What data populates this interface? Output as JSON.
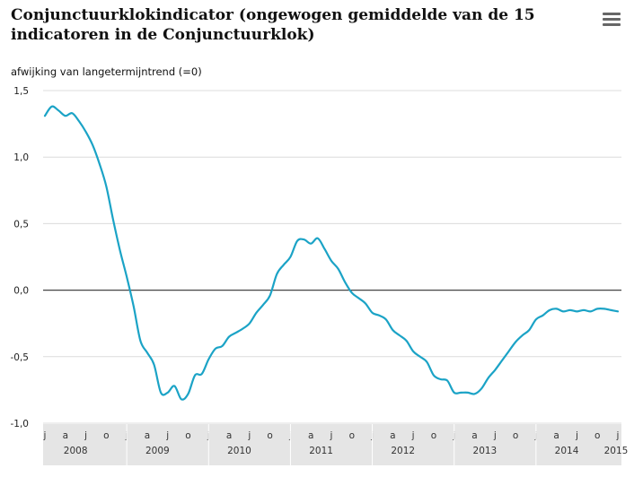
{
  "chart_data": {
    "type": "line",
    "title": "Conjunctuurklokindicator (ongewogen gemiddelde van de 15 indicatoren in de Conjunctuurklok)",
    "xlabel": "",
    "ylabel": "afwijking van langetermijntrend (=0)",
    "ylim": [
      -1.0,
      1.5
    ],
    "yticks": [
      "-1,0",
      "-0,5",
      "0,0",
      "0,5",
      "1,0",
      "1,5"
    ],
    "grid": true,
    "legend": "none",
    "line_color": "#1ba3c6",
    "month_ticks": [
      "j",
      "a",
      "j",
      "o",
      "j",
      "a",
      "j",
      "o",
      "j",
      "a",
      "j",
      "o",
      "j",
      "a",
      "j",
      "o",
      "j",
      "a",
      "j",
      "o",
      "j",
      "a",
      "j",
      "o",
      "j",
      "a",
      "j",
      "o",
      "j"
    ],
    "year_labels": [
      "2008",
      "2009",
      "2010",
      "2011",
      "2012",
      "2013",
      "2014",
      "2015"
    ],
    "series": [
      {
        "x": [
          "2008-01",
          "2008-02",
          "2008-03",
          "2008-04",
          "2008-05",
          "2008-06",
          "2008-07",
          "2008-08",
          "2008-09",
          "2008-10",
          "2008-11",
          "2008-12",
          "2009-01",
          "2009-02",
          "2009-03",
          "2009-04",
          "2009-05",
          "2009-06",
          "2009-07",
          "2009-08",
          "2009-09",
          "2009-10",
          "2009-11",
          "2009-12",
          "2010-01",
          "2010-02",
          "2010-03",
          "2010-04",
          "2010-05",
          "2010-06",
          "2010-07",
          "2010-08",
          "2010-09",
          "2010-10",
          "2010-11",
          "2010-12",
          "2011-01",
          "2011-02",
          "2011-03",
          "2011-04",
          "2011-05",
          "2011-06",
          "2011-07",
          "2011-08",
          "2011-09",
          "2011-10",
          "2011-11",
          "2011-12",
          "2012-01",
          "2012-02",
          "2012-03",
          "2012-04",
          "2012-05",
          "2012-06",
          "2012-07",
          "2012-08",
          "2012-09",
          "2012-10",
          "2012-11",
          "2012-12",
          "2013-01",
          "2013-02",
          "2013-03",
          "2013-04",
          "2013-05",
          "2013-06",
          "2013-07",
          "2013-08",
          "2013-09",
          "2013-10",
          "2013-11",
          "2013-12",
          "2014-01",
          "2014-02",
          "2014-03",
          "2014-04",
          "2014-05",
          "2014-06",
          "2014-07",
          "2014-08",
          "2014-09",
          "2014-10",
          "2014-11",
          "2014-12",
          "2015-01"
        ],
        "values": [
          1.31,
          1.38,
          1.35,
          1.31,
          1.33,
          1.27,
          1.19,
          1.09,
          0.95,
          0.78,
          0.53,
          0.3,
          0.1,
          -0.12,
          -0.38,
          -0.47,
          -0.56,
          -0.77,
          -0.77,
          -0.72,
          -0.82,
          -0.78,
          -0.64,
          -0.63,
          -0.52,
          -0.44,
          -0.42,
          -0.35,
          -0.32,
          -0.29,
          -0.25,
          -0.17,
          -0.11,
          -0.04,
          0.12,
          0.19,
          0.25,
          0.37,
          0.38,
          0.35,
          0.39,
          0.31,
          0.22,
          0.16,
          0.06,
          -0.02,
          -0.06,
          -0.1,
          -0.17,
          -0.19,
          -0.22,
          -0.3,
          -0.34,
          -0.38,
          -0.46,
          -0.5,
          -0.54,
          -0.64,
          -0.67,
          -0.68,
          -0.77,
          -0.77,
          -0.77,
          -0.78,
          -0.74,
          -0.66,
          -0.6,
          -0.53,
          -0.46,
          -0.39,
          -0.34,
          -0.3,
          -0.22,
          -0.19,
          -0.15,
          -0.14,
          -0.16,
          -0.15,
          -0.16,
          -0.15,
          -0.16,
          -0.14,
          -0.14,
          -0.15,
          -0.16
        ]
      }
    ]
  }
}
